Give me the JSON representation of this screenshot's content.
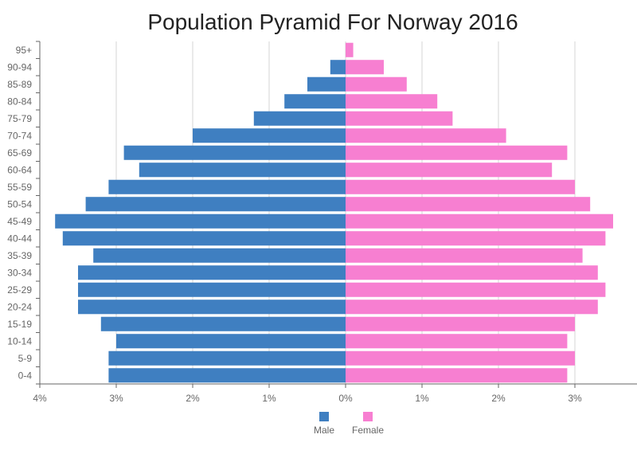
{
  "chart_data": {
    "type": "bar",
    "orientation": "horizontal",
    "title": "Population Pyramid For Norway 2016",
    "categories": [
      "95+",
      "90-94",
      "85-89",
      "80-84",
      "75-79",
      "70-74",
      "65-69",
      "60-64",
      "55-59",
      "50-54",
      "45-49",
      "40-44",
      "35-39",
      "30-34",
      "25-29",
      "20-24",
      "15-19",
      "10-14",
      "5-9",
      "0-4"
    ],
    "series": [
      {
        "name": "Male",
        "color": "#3f7fc1",
        "values": [
          0.0,
          0.2,
          0.5,
          0.8,
          1.2,
          2.0,
          2.9,
          2.7,
          3.1,
          3.4,
          3.8,
          3.7,
          3.3,
          3.5,
          3.5,
          3.5,
          3.2,
          3.0,
          3.1,
          3.1
        ]
      },
      {
        "name": "Female",
        "color": "#f77fd1",
        "values": [
          0.1,
          0.5,
          0.8,
          1.2,
          1.4,
          2.1,
          2.9,
          2.7,
          3.0,
          3.2,
          3.5,
          3.4,
          3.1,
          3.3,
          3.4,
          3.3,
          3.0,
          2.9,
          3.0,
          2.9
        ]
      }
    ],
    "xaxis_ticks": [
      "4%",
      "3%",
      "2%",
      "1%",
      "0%",
      "1%",
      "2%",
      "3%"
    ],
    "xlim": [
      -4,
      3.8
    ],
    "grid": true,
    "legend_position": "bottom"
  }
}
